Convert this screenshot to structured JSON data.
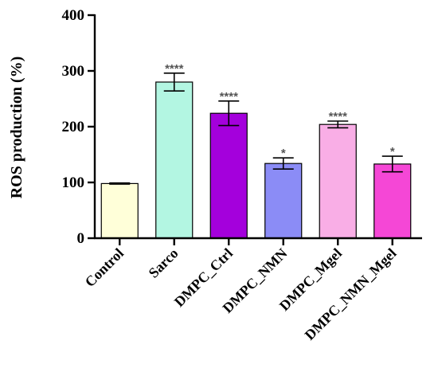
{
  "chart_data": {
    "type": "bar",
    "title": "",
    "xlabel": "",
    "ylabel": "ROS production (%)",
    "ylim": [
      0,
      400
    ],
    "yticks": [
      0,
      100,
      200,
      300,
      400
    ],
    "grid": false,
    "legend": "none",
    "categories": [
      "Control",
      "Sarco",
      "DMPC_Ctrl",
      "DMPC_NMN",
      "DMPC_Mgel",
      "DMPC_NMN_Mgel"
    ],
    "values": [
      98,
      280,
      224,
      134,
      204,
      133
    ],
    "errors": [
      1,
      16,
      22,
      10,
      6,
      14
    ],
    "significance": [
      "",
      "****",
      "****",
      "*",
      "****",
      "*"
    ],
    "colors": [
      "#ffffd9",
      "#b3f6e2",
      "#a400dc",
      "#8b8cf6",
      "#f9aee6",
      "#f547d6"
    ]
  }
}
